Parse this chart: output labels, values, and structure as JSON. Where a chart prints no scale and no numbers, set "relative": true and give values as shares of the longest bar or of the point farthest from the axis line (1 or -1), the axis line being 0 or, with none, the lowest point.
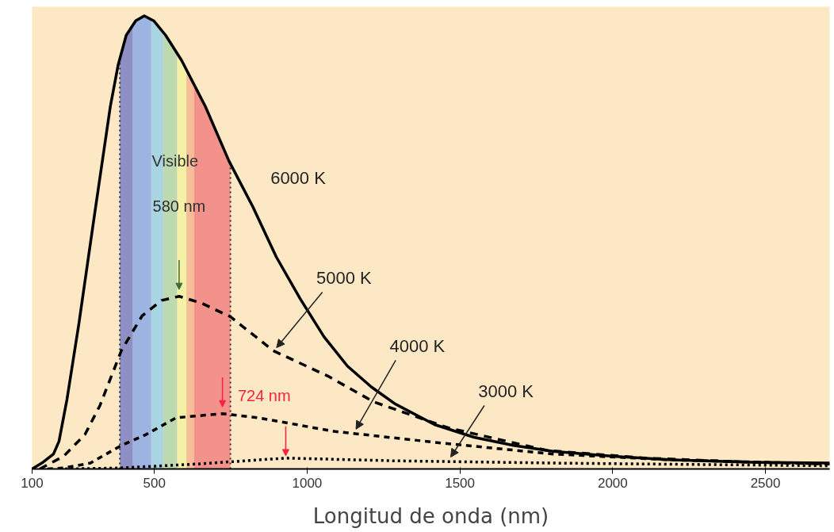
{
  "chart_data": {
    "type": "line",
    "relative": true,
    "xlabel": "Longitud de onda (nm)",
    "xlim": [
      100,
      2710
    ],
    "xticks": [
      100,
      500,
      1000,
      1500,
      2000,
      2500
    ],
    "grid": false,
    "series": [
      {
        "name": "6000 K",
        "color": "#000000",
        "line_style": "solid",
        "x": [
          100,
          136,
          170,
          188,
          214,
          253,
          304,
          356,
          382,
          408,
          439,
          467,
          498,
          537,
          589,
          667,
          744,
          822,
          899,
          977,
          1055,
          1132,
          1210,
          1287,
          1417,
          1546,
          1675,
          1805,
          2001,
          2193,
          2452,
          2710
        ],
        "values": [
          0,
          0.015,
          0.033,
          0.061,
          0.153,
          0.32,
          0.56,
          0.8,
          0.893,
          0.957,
          0.989,
          1,
          0.989,
          0.957,
          0.902,
          0.8,
          0.68,
          0.579,
          0.468,
          0.376,
          0.292,
          0.227,
          0.181,
          0.144,
          0.098,
          0.07,
          0.052,
          0.039,
          0.028,
          0.02,
          0.015,
          0.013
        ]
      },
      {
        "name": "5000 K",
        "color": "#000000",
        "line_style": "dashed",
        "x": [
          125,
          203,
          273,
          322,
          392,
          460,
          524,
          581,
          654,
          749,
          889,
          1068,
          1218,
          1461,
          1784,
          2108,
          2452,
          2710
        ],
        "values": [
          0,
          0.028,
          0.076,
          0.14,
          0.261,
          0.338,
          0.372,
          0.381,
          0.366,
          0.336,
          0.261,
          0.205,
          0.148,
          0.091,
          0.041,
          0.024,
          0.015,
          0.011
        ]
      },
      {
        "name": "4000 K",
        "color": "#000000",
        "line_style": "dashed",
        "x": [
          150,
          201,
          291,
          392,
          473,
          571,
          723,
          840,
          1088,
          1443,
          1805,
          2193,
          2710
        ],
        "values": [
          0,
          0.002,
          0.013,
          0.052,
          0.076,
          0.113,
          0.122,
          0.113,
          0.083,
          0.057,
          0.033,
          0.02,
          0.011
        ]
      },
      {
        "name": "3000 K",
        "color": "#000000",
        "line_style": "dotted",
        "x": [
          190,
          382,
          641,
          930,
          1287,
          1805,
          2710
        ],
        "values": [
          0,
          0.002,
          0.011,
          0.024,
          0.018,
          0.013,
          0.007
        ]
      }
    ],
    "bands": [
      {
        "axis": "x",
        "from": 387,
        "to": 430,
        "color": "#8e8fc4",
        "label": "Visible"
      },
      {
        "axis": "x",
        "from": 430,
        "to": 490,
        "color": "#9db3e2"
      },
      {
        "axis": "x",
        "from": 490,
        "to": 530,
        "color": "#a9d5e2"
      },
      {
        "axis": "x",
        "from": 530,
        "to": 575,
        "color": "#bdd9b0"
      },
      {
        "axis": "x",
        "from": 575,
        "to": 605,
        "color": "#f4f0a6"
      },
      {
        "axis": "x",
        "from": 605,
        "to": 630,
        "color": "#f6bd98"
      },
      {
        "axis": "x",
        "from": 630,
        "to": 749,
        "color": "#f3928a"
      }
    ],
    "ref_lines": [
      {
        "axis": "x",
        "value": 387,
        "color": "#333333",
        "line_style": "dotted"
      },
      {
        "axis": "x",
        "value": 749,
        "color": "#333333",
        "line_style": "dotted"
      }
    ],
    "annotations": [
      "580 nm",
      "724 nm"
    ]
  }
}
